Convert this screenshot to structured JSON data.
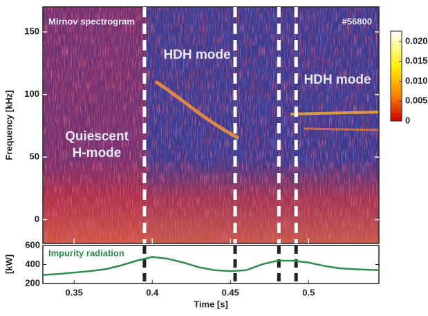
{
  "chart_data": [
    {
      "type": "spectrogram",
      "title": "Mirnov spectrogram",
      "annotations": [
        "#56800",
        "HDH mode",
        "HDH mode",
        "Quiescent",
        "H-mode"
      ],
      "ylabel": "Frequency [kHz]",
      "xlim": [
        0.33,
        0.545
      ],
      "ylim": [
        -19,
        170
      ],
      "yticks": [
        0,
        50,
        100,
        150
      ],
      "markers": [
        0.395,
        0.453,
        0.481,
        0.492
      ],
      "colorbar": {
        "ylim": [
          0,
          0.0226
        ],
        "yticks": [
          0,
          0.005,
          {
            "value": 0.01,
            "label": "0.010"
          },
          0.015,
          {
            "value": 0.02,
            "label": "0.020"
          }
        ]
      }
    },
    {
      "type": "line",
      "xlabel": "Time [s]",
      "ylabel": "[kW]",
      "xlim": [
        0.33,
        0.545
      ],
      "xticks": [
        0.35,
        0.4,
        0.45,
        0.5
      ],
      "ylim": [
        200,
        600
      ],
      "yticks": [
        200,
        400,
        600
      ],
      "markers": [
        0.395,
        0.453,
        0.481,
        0.492
      ],
      "x": [
        0.33,
        0.34,
        0.35,
        0.36,
        0.37,
        0.38,
        0.39,
        0.4,
        0.41,
        0.42,
        0.43,
        0.44,
        0.45,
        0.46,
        0.47,
        0.48,
        0.49,
        0.5,
        0.51,
        0.52,
        0.53,
        0.545
      ],
      "series": [
        {
          "name": "Impurity radiation",
          "color": "#2e8b4f",
          "values": [
            290,
            300,
            315,
            330,
            350,
            390,
            440,
            480,
            460,
            420,
            370,
            340,
            330,
            340,
            400,
            440,
            440,
            420,
            385,
            360,
            350,
            340
          ]
        }
      ]
    }
  ]
}
